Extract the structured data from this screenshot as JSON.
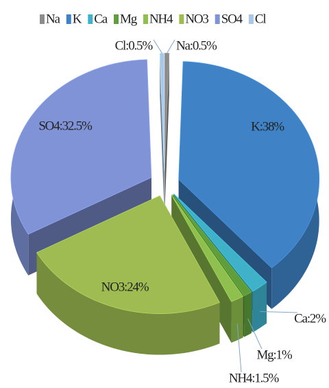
{
  "chart_data": {
    "type": "pie",
    "categories": [
      "Na",
      "K",
      "Ca",
      "Mg",
      "NH4",
      "NO3",
      "SO4",
      "Cl"
    ],
    "values": [
      0.5,
      38,
      2,
      1,
      1.5,
      24,
      32.5,
      0.5
    ],
    "value_labels": [
      "Na:0.5%",
      "K:38%",
      "Ca:2%",
      "Mg:1%",
      "NH4:1.5%",
      "NO3:24%",
      "SO4:32.5%",
      "Cl:0.5%"
    ],
    "colors": [
      "#8c8c8c",
      "#3f82c6",
      "#3fb1c9",
      "#5f9e3a",
      "#8fbf4f",
      "#9ebc52",
      "#7f93d6",
      "#a9c8e8"
    ],
    "legend": "top"
  }
}
